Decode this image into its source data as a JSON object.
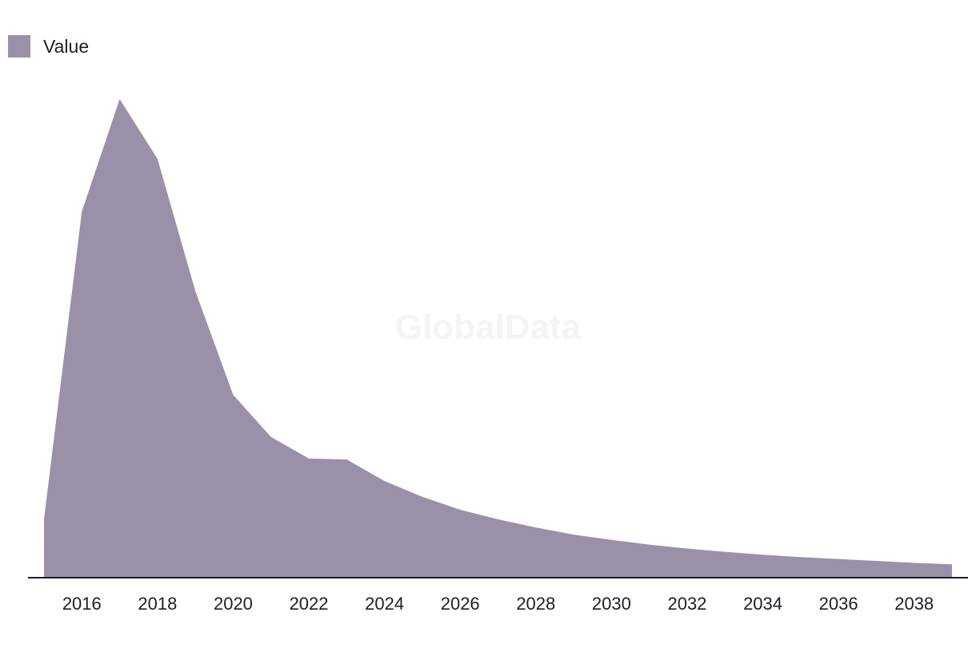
{
  "chart_data": {
    "type": "area",
    "title": "",
    "xlabel": "",
    "ylabel": "",
    "x": [
      2015,
      2016,
      2017,
      2018,
      2019,
      2020,
      2021,
      2022,
      2023,
      2024,
      2025,
      2026,
      2027,
      2028,
      2029,
      2030,
      2031,
      2032,
      2033,
      2034,
      2035,
      2036,
      2037,
      2038,
      2039
    ],
    "series": [
      {
        "name": "Value",
        "color": "#9a91a9",
        "values": [
          12.2,
          76.5,
          100,
          87.5,
          59.9,
          38.2,
          29.4,
          24.9,
          24.7,
          20.2,
          16.9,
          14.2,
          12.2,
          10.5,
          9.0,
          7.9,
          6.9,
          6.1,
          5.4,
          4.8,
          4.3,
          3.9,
          3.5,
          3.1,
          2.8
        ]
      }
    ],
    "x_ticks": [
      "2016",
      "2018",
      "2020",
      "2022",
      "2024",
      "2026",
      "2028",
      "2030",
      "2032",
      "2034",
      "2036",
      "2038"
    ],
    "xlim": [
      2015,
      2039
    ],
    "ylim": [
      0,
      100
    ],
    "grid": false,
    "legend": "top-left"
  },
  "legend": {
    "label": "Value"
  },
  "watermark": "GlobalData"
}
